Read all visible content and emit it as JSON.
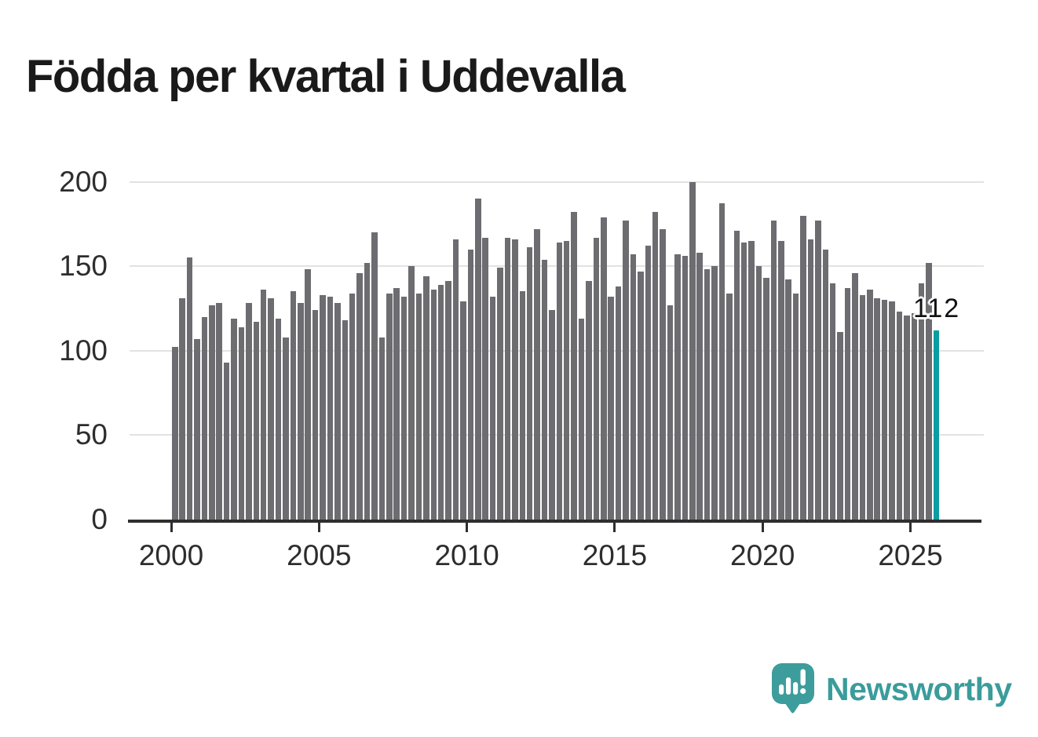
{
  "chart_data": {
    "type": "bar",
    "title": "Födda per kvartal i Uddevalla",
    "ylabel": "",
    "xlabel": "",
    "ylim": [
      0,
      200
    ],
    "grid": true,
    "legend": false,
    "y_ticks": [
      0,
      50,
      100,
      150,
      200
    ],
    "x_tick_years": [
      2000,
      2005,
      2010,
      2015,
      2020,
      2025
    ],
    "bar_color": "#6c6c71",
    "highlight_color": "#0b9da1",
    "highlight_index": 103,
    "annotation_label": "112",
    "categories": [
      "2000Q1",
      "2000Q2",
      "2000Q3",
      "2000Q4",
      "2001Q1",
      "2001Q2",
      "2001Q3",
      "2001Q4",
      "2002Q1",
      "2002Q2",
      "2002Q3",
      "2002Q4",
      "2003Q1",
      "2003Q2",
      "2003Q3",
      "2003Q4",
      "2004Q1",
      "2004Q2",
      "2004Q3",
      "2004Q4",
      "2005Q1",
      "2005Q2",
      "2005Q3",
      "2005Q4",
      "2006Q1",
      "2006Q2",
      "2006Q3",
      "2006Q4",
      "2007Q1",
      "2007Q2",
      "2007Q3",
      "2007Q4",
      "2008Q1",
      "2008Q2",
      "2008Q3",
      "2008Q4",
      "2009Q1",
      "2009Q2",
      "2009Q3",
      "2009Q4",
      "2010Q1",
      "2010Q2",
      "2010Q3",
      "2010Q4",
      "2011Q1",
      "2011Q2",
      "2011Q3",
      "2011Q4",
      "2012Q1",
      "2012Q2",
      "2012Q3",
      "2012Q4",
      "2013Q1",
      "2013Q2",
      "2013Q3",
      "2013Q4",
      "2014Q1",
      "2014Q2",
      "2014Q3",
      "2014Q4",
      "2015Q1",
      "2015Q2",
      "2015Q3",
      "2015Q4",
      "2016Q1",
      "2016Q2",
      "2016Q3",
      "2016Q4",
      "2017Q1",
      "2017Q2",
      "2017Q3",
      "2017Q4",
      "2018Q1",
      "2018Q2",
      "2018Q3",
      "2018Q4",
      "2019Q1",
      "2019Q2",
      "2019Q3",
      "2019Q4",
      "2020Q1",
      "2020Q2",
      "2020Q3",
      "2020Q4",
      "2021Q1",
      "2021Q2",
      "2021Q3",
      "2021Q4",
      "2022Q1",
      "2022Q2",
      "2022Q3",
      "2022Q4",
      "2023Q1",
      "2023Q2",
      "2023Q3",
      "2023Q4",
      "2024Q1",
      "2024Q2",
      "2024Q3",
      "2024Q4",
      "2025Q1",
      "2025Q2",
      "2025Q3",
      "2025Q4"
    ],
    "values": [
      102,
      131,
      155,
      107,
      120,
      127,
      128,
      93,
      119,
      114,
      128,
      117,
      136,
      131,
      119,
      108,
      135,
      128,
      148,
      124,
      133,
      132,
      128,
      118,
      134,
      146,
      152,
      170,
      108,
      134,
      137,
      132,
      150,
      134,
      144,
      136,
      139,
      141,
      166,
      129,
      160,
      190,
      167,
      132,
      149,
      167,
      166,
      135,
      161,
      172,
      154,
      124,
      164,
      165,
      182,
      119,
      141,
      167,
      179,
      132,
      138,
      177,
      157,
      147,
      162,
      182,
      172,
      127,
      157,
      156,
      200,
      158,
      148,
      150,
      187,
      134,
      171,
      164,
      165,
      150,
      143,
      177,
      165,
      142,
      134,
      180,
      166,
      177,
      160,
      140,
      111,
      137,
      146,
      133,
      136,
      131,
      130,
      129,
      123,
      121,
      122,
      140,
      152,
      112
    ]
  },
  "footer": {
    "brand": "Newsworthy",
    "brand_color": "#3b9c9b",
    "logo_icon": "speech-bubble-bar-chart-exclamation"
  }
}
